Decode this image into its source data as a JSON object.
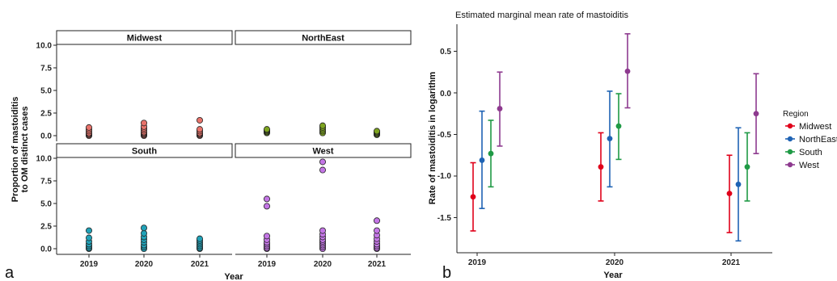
{
  "chart_data": [
    {
      "panel_label": "a",
      "type": "scatter",
      "facets": [
        {
          "name": "Midwest",
          "color": "#e8736b",
          "points": [
            {
              "x": "2019",
              "values": [
                0.0,
                0.1,
                0.2,
                0.3,
                0.5,
                0.7,
                0.9
              ]
            },
            {
              "x": "2020",
              "values": [
                0.0,
                0.1,
                0.2,
                0.3,
                0.4,
                0.6,
                0.8,
                1.0,
                1.4
              ]
            },
            {
              "x": "2021",
              "values": [
                0.0,
                0.1,
                0.2,
                0.3,
                0.5,
                0.7,
                1.7
              ]
            }
          ]
        },
        {
          "name": "NorthEast",
          "color": "#7da41f",
          "points": [
            {
              "x": "2019",
              "values": [
                0.3,
                0.4,
                0.5,
                0.6,
                0.7
              ]
            },
            {
              "x": "2020",
              "values": [
                0.3,
                0.5,
                0.7,
                0.9,
                1.1
              ]
            },
            {
              "x": "2021",
              "values": [
                0.1,
                0.2,
                0.3,
                0.4,
                0.5
              ]
            }
          ]
        },
        {
          "name": "South",
          "color": "#21a2b8",
          "points": [
            {
              "x": "2019",
              "values": [
                0.0,
                0.1,
                0.3,
                0.5,
                0.8,
                1.2,
                2.0
              ]
            },
            {
              "x": "2020",
              "values": [
                0.0,
                0.2,
                0.4,
                0.7,
                1.0,
                1.3,
                1.7,
                2.3
              ]
            },
            {
              "x": "2021",
              "values": [
                0.0,
                0.1,
                0.3,
                0.5,
                0.7,
                0.9,
                1.1
              ]
            }
          ]
        },
        {
          "name": "West",
          "color": "#c476e6",
          "points": [
            {
              "x": "2019",
              "values": [
                0.0,
                0.1,
                0.3,
                0.5,
                0.7,
                1.0,
                1.4,
                4.7,
                5.5
              ]
            },
            {
              "x": "2020",
              "values": [
                0.0,
                0.2,
                0.4,
                0.6,
                0.8,
                1.0,
                1.3,
                1.6,
                2.0,
                8.7,
                9.6
              ]
            },
            {
              "x": "2021",
              "values": [
                0.0,
                0.1,
                0.3,
                0.5,
                0.8,
                1.1,
                1.5,
                2.0,
                3.1
              ]
            }
          ]
        }
      ],
      "categories": [
        "2019",
        "2020",
        "2021"
      ],
      "xlabel": "Year",
      "ylabel": "Proportion of mastoiditis to OM distinct cases",
      "ylabel_lines": [
        "Proportion of mastoiditis",
        "to OM distinct cases"
      ],
      "ylim": [
        0,
        10
      ],
      "yticks": [
        "0.0",
        "2.5",
        "5.0",
        "7.5",
        "10.0"
      ],
      "yticks_top": [
        "0.0",
        "2.5",
        "5.0",
        "7.5",
        "10.0"
      ],
      "yticks_bottom": [
        "0.0",
        "2.5",
        "5.0",
        "7.5",
        "10.0"
      ],
      "grid": false
    },
    {
      "panel_label": "b",
      "type": "scatter",
      "title": "Estimated marginal mean rate of mastoiditis",
      "xlabel": "Year",
      "ylabel": "Rate of mastoiditis in logarithm",
      "categories": [
        "2019",
        "2020",
        "2021"
      ],
      "ylim": [
        -1.75,
        0.85
      ],
      "yticks": [
        "-1.5",
        "-1.0",
        "-0.5",
        "0.0",
        "0.5"
      ],
      "legend_title": "Region",
      "legend_position": "right",
      "grid": false,
      "series": [
        {
          "name": "Midwest",
          "color": "#e0001a",
          "values": [
            -1.25,
            -0.89,
            -1.21
          ],
          "lower": [
            -1.66,
            -1.3,
            -1.68
          ],
          "upper": [
            -0.84,
            -0.48,
            -0.75
          ]
        },
        {
          "name": "NorthEast",
          "color": "#1f63b4",
          "values": [
            -0.81,
            -0.55,
            -1.1
          ],
          "lower": [
            -1.39,
            -1.13,
            -1.78
          ],
          "upper": [
            -0.22,
            0.02,
            -0.42
          ]
        },
        {
          "name": "South",
          "color": "#1f9a45",
          "values": [
            -0.73,
            -0.4,
            -0.89
          ],
          "lower": [
            -1.13,
            -0.8,
            -1.3
          ],
          "upper": [
            -0.33,
            -0.01,
            -0.48
          ]
        },
        {
          "name": "West",
          "color": "#8e3a8f",
          "values": [
            -0.19,
            0.26,
            -0.25
          ],
          "lower": [
            -0.64,
            -0.18,
            -0.73
          ],
          "upper": [
            0.25,
            0.71,
            0.23
          ]
        }
      ]
    }
  ]
}
